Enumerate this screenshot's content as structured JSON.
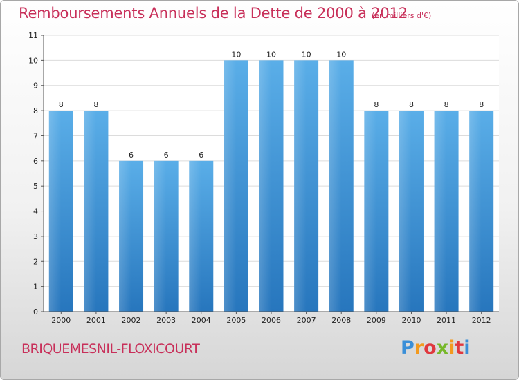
{
  "title": "Remboursements Annuels de la Dette de 2000 à 2012",
  "unit": "(en milliers d'€)",
  "commune": "BRIQUEMESNIL-FLOXICOURT",
  "logo": {
    "letters": [
      "P",
      "r",
      "o",
      "x",
      "i",
      "t",
      "i"
    ],
    "colors": [
      "#3a8fd8",
      "#f39a1e",
      "#e0383e",
      "#77b82a",
      "#f39a1e",
      "#e0383e",
      "#3a8fd8"
    ]
  },
  "colors": {
    "bar": "#4fa3e0",
    "bar_dark": "#2a78bf"
  },
  "chart_data": {
    "type": "bar",
    "categories": [
      "2000",
      "2001",
      "2002",
      "2003",
      "2004",
      "2005",
      "2006",
      "2007",
      "2008",
      "2009",
      "2010",
      "2011",
      "2012"
    ],
    "values": [
      8,
      8,
      6,
      6,
      6,
      10,
      10,
      10,
      10,
      8,
      8,
      8,
      8
    ],
    "data_labels": [
      "8",
      "8",
      "6",
      "6",
      "6",
      "10",
      "10",
      "10",
      "10",
      "8",
      "8",
      "8",
      "8"
    ],
    "ylim": [
      0,
      11
    ],
    "yticks": [
      "0",
      "1",
      "2",
      "3",
      "4",
      "5",
      "6",
      "7",
      "8",
      "9",
      "10",
      "11"
    ],
    "grid": true
  }
}
